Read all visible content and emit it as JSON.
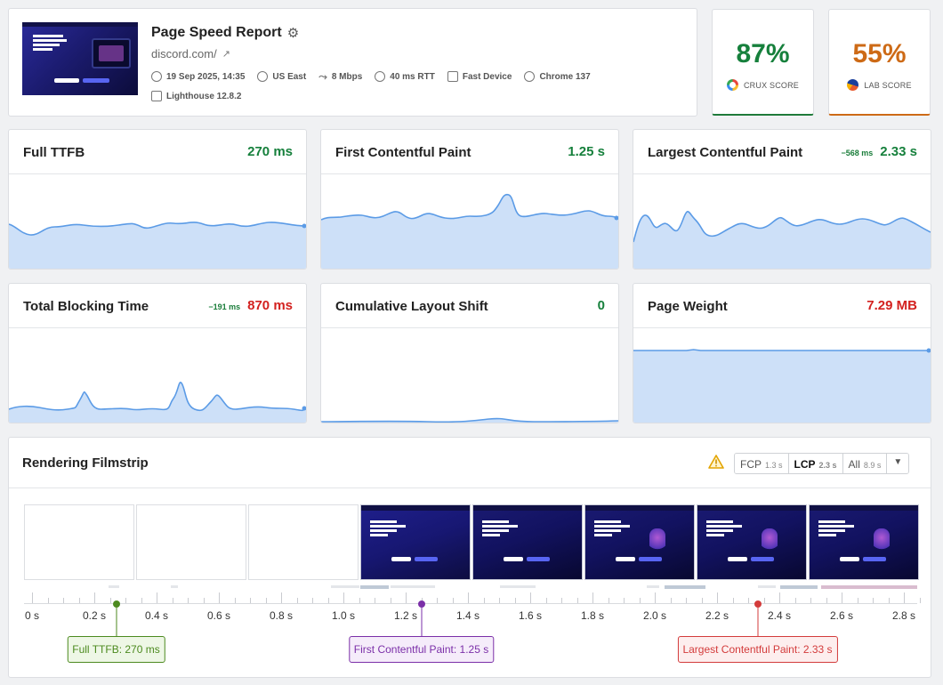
{
  "header": {
    "title": "Page Speed Report",
    "url": "discord.com/",
    "meta": {
      "date": "19 Sep 2025, 14:35",
      "location": "US East",
      "bandwidth": "8 Mbps",
      "latency": "40 ms RTT",
      "device": "Fast Device",
      "browser": "Chrome 137",
      "lighthouse": "Lighthouse 12.8.2"
    },
    "thumbnail_text": "GROUP CHAT THAT'S ALL FUN & GAMES"
  },
  "scores": {
    "crux": {
      "value": "87%",
      "label": "CRUX SCORE",
      "color": "#16803c"
    },
    "lab": {
      "value": "55%",
      "label": "LAB SCORE",
      "color": "#cd6a16"
    }
  },
  "metrics": [
    {
      "label": "Full TTFB",
      "value": "270 ms",
      "delta": "",
      "status": "good"
    },
    {
      "label": "First Contentful Paint",
      "value": "1.25 s",
      "delta": "",
      "status": "good"
    },
    {
      "label": "Largest Contentful Paint",
      "value": "2.33 s",
      "delta": "−568 ms",
      "status": "good"
    },
    {
      "label": "Total Blocking Time",
      "value": "870 ms",
      "delta": "−191 ms",
      "status": "poor"
    },
    {
      "label": "Cumulative Layout Shift",
      "value": "0",
      "delta": "",
      "status": "good"
    },
    {
      "label": "Page Weight",
      "value": "7.29 MB",
      "delta": "",
      "status": "poor"
    }
  ],
  "filmstrip": {
    "title": "Rendering Filmstrip",
    "filters": [
      {
        "label": "FCP",
        "time": "1.3 s",
        "active": false
      },
      {
        "label": "LCP",
        "time": "2.3 s",
        "active": true
      },
      {
        "label": "All",
        "time": "8.9 s",
        "active": false
      }
    ],
    "axis_labels": [
      "0 s",
      "0.2 s",
      "0.4 s",
      "0.6 s",
      "0.8 s",
      "1.0 s",
      "1.2 s",
      "1.4 s",
      "1.6 s",
      "1.8 s",
      "2.0 s",
      "2.2 s",
      "2.4 s",
      "2.6 s",
      "2.8 s"
    ],
    "axis_range_s": [
      0,
      2.85
    ],
    "markers": [
      {
        "label": "Full TTFB: 270 ms",
        "time_s": 0.27,
        "color": "#4c8a1f",
        "bg": "#eef7e6"
      },
      {
        "label": "First Contentful Paint: 1.25 s",
        "time_s": 1.25,
        "color": "#7b2fa8",
        "bg": "#f5ecfa"
      },
      {
        "label": "Largest Contentful Paint: 2.33 s",
        "time_s": 2.33,
        "color": "#d33b3b",
        "bg": "#fdeeee"
      }
    ]
  }
}
